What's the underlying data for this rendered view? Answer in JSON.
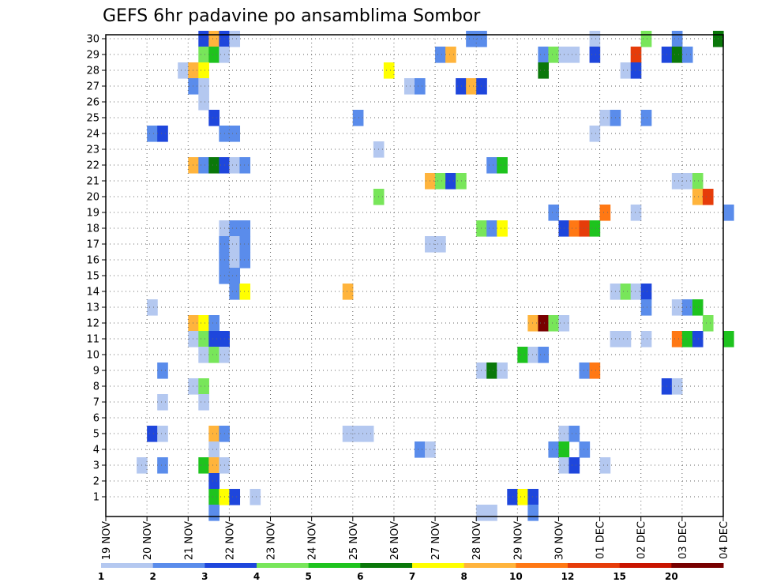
{
  "chart_data": {
    "type": "heatmap",
    "title": "GEFS 6hr padavine po ansamblima Sombor",
    "xlabel": "",
    "ylabel": "",
    "x_ticks": [
      "19 NOV",
      "20 NOV",
      "21 NOV",
      "22 NOV",
      "23 NOV",
      "24 NOV",
      "25 NOV",
      "26 NOV",
      "27 NOV",
      "28 NOV",
      "29 NOV",
      "30 NOV",
      "01 DEC",
      "02 DEC",
      "03 DEC",
      "04 DEC"
    ],
    "y_ticks": [
      "1",
      "2",
      "3",
      "4",
      "5",
      "6",
      "7",
      "8",
      "9",
      "10",
      "11",
      "12",
      "13",
      "14",
      "15",
      "16",
      "17",
      "18",
      "19",
      "20",
      "21",
      "22",
      "23",
      "24",
      "25",
      "26",
      "27",
      "28",
      "29",
      "30"
    ],
    "x_range_steps": [
      0,
      60
    ],
    "y_range_members": [
      0,
      30
    ],
    "grid": true,
    "legend": {
      "placement": "bottom",
      "labels": [
        "1",
        "2",
        "3",
        "4",
        "5",
        "6",
        "7",
        "8",
        "10",
        "12",
        "15",
        "20"
      ],
      "colors": [
        "#b4c8f0",
        "#5a8ceb",
        "#1e46dc",
        "#78e65a",
        "#1ec31e",
        "#0a780a",
        "#ffff00",
        "#ffb43c",
        "#ff7814",
        "#e63c0a",
        "#c81400",
        "#780000"
      ]
    },
    "cells": [
      {
        "m": 30,
        "t": 9,
        "c": 2
      },
      {
        "m": 30,
        "t": 10,
        "c": 7
      },
      {
        "m": 30,
        "t": 11,
        "c": 2
      },
      {
        "m": 30,
        "t": 12,
        "c": 0
      },
      {
        "m": 30,
        "t": 35,
        "c": 1
      },
      {
        "m": 30,
        "t": 36,
        "c": 1
      },
      {
        "m": 30,
        "t": 47,
        "c": 0
      },
      {
        "m": 30,
        "t": 52,
        "c": 3
      },
      {
        "m": 30,
        "t": 55,
        "c": 1
      },
      {
        "m": 30,
        "t": 59,
        "c": 5
      },
      {
        "m": 29,
        "t": 9,
        "c": 3
      },
      {
        "m": 29,
        "t": 10,
        "c": 4
      },
      {
        "m": 29,
        "t": 11,
        "c": 0
      },
      {
        "m": 29,
        "t": 32,
        "c": 1
      },
      {
        "m": 29,
        "t": 33,
        "c": 7
      },
      {
        "m": 29,
        "t": 42,
        "c": 1
      },
      {
        "m": 29,
        "t": 43,
        "c": 3
      },
      {
        "m": 29,
        "t": 44,
        "c": 0
      },
      {
        "m": 29,
        "t": 45,
        "c": 0
      },
      {
        "m": 29,
        "t": 47,
        "c": 2
      },
      {
        "m": 29,
        "t": 51,
        "c": 9
      },
      {
        "m": 29,
        "t": 54,
        "c": 2
      },
      {
        "m": 29,
        "t": 55,
        "c": 5
      },
      {
        "m": 29,
        "t": 56,
        "c": 1
      },
      {
        "m": 28,
        "t": 7,
        "c": 0
      },
      {
        "m": 28,
        "t": 8,
        "c": 7
      },
      {
        "m": 28,
        "t": 9,
        "c": 6
      },
      {
        "m": 28,
        "t": 27,
        "c": 6
      },
      {
        "m": 28,
        "t": 42,
        "c": 5
      },
      {
        "m": 28,
        "t": 50,
        "c": 0
      },
      {
        "m": 28,
        "t": 51,
        "c": 2
      },
      {
        "m": 27,
        "t": 8,
        "c": 1
      },
      {
        "m": 27,
        "t": 9,
        "c": 0
      },
      {
        "m": 27,
        "t": 29,
        "c": 0
      },
      {
        "m": 27,
        "t": 30,
        "c": 1
      },
      {
        "m": 27,
        "t": 34,
        "c": 2
      },
      {
        "m": 27,
        "t": 35,
        "c": 7
      },
      {
        "m": 27,
        "t": 36,
        "c": 2
      },
      {
        "m": 26,
        "t": 9,
        "c": 0
      },
      {
        "m": 25,
        "t": 10,
        "c": 2
      },
      {
        "m": 25,
        "t": 24,
        "c": 1
      },
      {
        "m": 25,
        "t": 48,
        "c": 0
      },
      {
        "m": 25,
        "t": 49,
        "c": 1
      },
      {
        "m": 25,
        "t": 52,
        "c": 1
      },
      {
        "m": 24,
        "t": 4,
        "c": 1
      },
      {
        "m": 24,
        "t": 5,
        "c": 2
      },
      {
        "m": 24,
        "t": 11,
        "c": 1
      },
      {
        "m": 24,
        "t": 12,
        "c": 1
      },
      {
        "m": 24,
        "t": 47,
        "c": 0
      },
      {
        "m": 23,
        "t": 26,
        "c": 0
      },
      {
        "m": 22,
        "t": 8,
        "c": 7
      },
      {
        "m": 22,
        "t": 9,
        "c": 1
      },
      {
        "m": 22,
        "t": 10,
        "c": 5
      },
      {
        "m": 22,
        "t": 11,
        "c": 2
      },
      {
        "m": 22,
        "t": 12,
        "c": 0
      },
      {
        "m": 22,
        "t": 13,
        "c": 1
      },
      {
        "m": 22,
        "t": 37,
        "c": 1
      },
      {
        "m": 22,
        "t": 38,
        "c": 4
      },
      {
        "m": 21,
        "t": 31,
        "c": 7
      },
      {
        "m": 21,
        "t": 32,
        "c": 3
      },
      {
        "m": 21,
        "t": 33,
        "c": 2
      },
      {
        "m": 21,
        "t": 34,
        "c": 3
      },
      {
        "m": 21,
        "t": 55,
        "c": 0
      },
      {
        "m": 21,
        "t": 56,
        "c": 0
      },
      {
        "m": 21,
        "t": 57,
        "c": 3
      },
      {
        "m": 20,
        "t": 26,
        "c": 3
      },
      {
        "m": 20,
        "t": 57,
        "c": 7
      },
      {
        "m": 20,
        "t": 58,
        "c": 9
      },
      {
        "m": 19,
        "t": 43,
        "c": 1
      },
      {
        "m": 19,
        "t": 48,
        "c": 8
      },
      {
        "m": 19,
        "t": 51,
        "c": 0
      },
      {
        "m": 19,
        "t": 60,
        "c": 1
      },
      {
        "m": 18,
        "t": 11,
        "c": 0
      },
      {
        "m": 18,
        "t": 12,
        "c": 1
      },
      {
        "m": 18,
        "t": 13,
        "c": 1
      },
      {
        "m": 18,
        "t": 36,
        "c": 3
      },
      {
        "m": 18,
        "t": 37,
        "c": 1
      },
      {
        "m": 18,
        "t": 38,
        "c": 6
      },
      {
        "m": 18,
        "t": 44,
        "c": 2
      },
      {
        "m": 18,
        "t": 45,
        "c": 8
      },
      {
        "m": 18,
        "t": 46,
        "c": 9
      },
      {
        "m": 18,
        "t": 47,
        "c": 4
      },
      {
        "m": 17,
        "t": 11,
        "c": 1
      },
      {
        "m": 17,
        "t": 12,
        "c": 0
      },
      {
        "m": 17,
        "t": 13,
        "c": 1
      },
      {
        "m": 17,
        "t": 31,
        "c": 0
      },
      {
        "m": 17,
        "t": 32,
        "c": 0
      },
      {
        "m": 16,
        "t": 11,
        "c": 1
      },
      {
        "m": 16,
        "t": 12,
        "c": 0
      },
      {
        "m": 16,
        "t": 13,
        "c": 1
      },
      {
        "m": 15,
        "t": 11,
        "c": 1
      },
      {
        "m": 15,
        "t": 12,
        "c": 1
      },
      {
        "m": 14,
        "t": 12,
        "c": 1
      },
      {
        "m": 14,
        "t": 13,
        "c": 6
      },
      {
        "m": 14,
        "t": 23,
        "c": 7
      },
      {
        "m": 14,
        "t": 49,
        "c": 0
      },
      {
        "m": 14,
        "t": 50,
        "c": 3
      },
      {
        "m": 14,
        "t": 51,
        "c": 0
      },
      {
        "m": 14,
        "t": 52,
        "c": 2
      },
      {
        "m": 13,
        "t": 4,
        "c": 0
      },
      {
        "m": 13,
        "t": 52,
        "c": 1
      },
      {
        "m": 13,
        "t": 55,
        "c": 0
      },
      {
        "m": 13,
        "t": 56,
        "c": 1
      },
      {
        "m": 13,
        "t": 57,
        "c": 4
      },
      {
        "m": 12,
        "t": 8,
        "c": 7
      },
      {
        "m": 12,
        "t": 9,
        "c": 6
      },
      {
        "m": 12,
        "t": 10,
        "c": 1
      },
      {
        "m": 12,
        "t": 41,
        "c": 7
      },
      {
        "m": 12,
        "t": 42,
        "c": 11
      },
      {
        "m": 12,
        "t": 43,
        "c": 3
      },
      {
        "m": 12,
        "t": 44,
        "c": 0
      },
      {
        "m": 12,
        "t": 58,
        "c": 3
      },
      {
        "m": 11,
        "t": 8,
        "c": 0
      },
      {
        "m": 11,
        "t": 9,
        "c": 3
      },
      {
        "m": 11,
        "t": 10,
        "c": 2
      },
      {
        "m": 11,
        "t": 11,
        "c": 2
      },
      {
        "m": 11,
        "t": 49,
        "c": 0
      },
      {
        "m": 11,
        "t": 50,
        "c": 0
      },
      {
        "m": 11,
        "t": 52,
        "c": 0
      },
      {
        "m": 11,
        "t": 55,
        "c": 8
      },
      {
        "m": 11,
        "t": 56,
        "c": 4
      },
      {
        "m": 11,
        "t": 57,
        "c": 2
      },
      {
        "m": 11,
        "t": 60,
        "c": 4
      },
      {
        "m": 10,
        "t": 9,
        "c": 0
      },
      {
        "m": 10,
        "t": 10,
        "c": 3
      },
      {
        "m": 10,
        "t": 11,
        "c": 0
      },
      {
        "m": 10,
        "t": 40,
        "c": 4
      },
      {
        "m": 10,
        "t": 41,
        "c": 0
      },
      {
        "m": 10,
        "t": 42,
        "c": 1
      },
      {
        "m": 9,
        "t": 5,
        "c": 1
      },
      {
        "m": 9,
        "t": 36,
        "c": 0
      },
      {
        "m": 9,
        "t": 37,
        "c": 5
      },
      {
        "m": 9,
        "t": 38,
        "c": 0
      },
      {
        "m": 9,
        "t": 46,
        "c": 1
      },
      {
        "m": 9,
        "t": 47,
        "c": 8
      },
      {
        "m": 8,
        "t": 8,
        "c": 0
      },
      {
        "m": 8,
        "t": 9,
        "c": 3
      },
      {
        "m": 8,
        "t": 54,
        "c": 2
      },
      {
        "m": 8,
        "t": 55,
        "c": 0
      },
      {
        "m": 7,
        "t": 5,
        "c": 0
      },
      {
        "m": 7,
        "t": 9,
        "c": 0
      },
      {
        "m": 5,
        "t": 4,
        "c": 2
      },
      {
        "m": 5,
        "t": 5,
        "c": 0
      },
      {
        "m": 5,
        "t": 10,
        "c": 7
      },
      {
        "m": 5,
        "t": 11,
        "c": 1
      },
      {
        "m": 5,
        "t": 23,
        "c": 0
      },
      {
        "m": 5,
        "t": 24,
        "c": 0
      },
      {
        "m": 5,
        "t": 25,
        "c": 0
      },
      {
        "m": 5,
        "t": 44,
        "c": 0
      },
      {
        "m": 5,
        "t": 45,
        "c": 1
      },
      {
        "m": 4,
        "t": 10,
        "c": 0
      },
      {
        "m": 4,
        "t": 30,
        "c": 1
      },
      {
        "m": 4,
        "t": 31,
        "c": 0
      },
      {
        "m": 4,
        "t": 43,
        "c": 1
      },
      {
        "m": 4,
        "t": 44,
        "c": 4
      },
      {
        "m": 4,
        "t": 46,
        "c": 1
      },
      {
        "m": 3,
        "t": 3,
        "c": 0
      },
      {
        "m": 3,
        "t": 5,
        "c": 1
      },
      {
        "m": 3,
        "t": 9,
        "c": 4
      },
      {
        "m": 3,
        "t": 10,
        "c": 7
      },
      {
        "m": 3,
        "t": 11,
        "c": 0
      },
      {
        "m": 3,
        "t": 44,
        "c": 0
      },
      {
        "m": 3,
        "t": 45,
        "c": 2
      },
      {
        "m": 3,
        "t": 48,
        "c": 0
      },
      {
        "m": 2,
        "t": 10,
        "c": 2
      },
      {
        "m": 1,
        "t": 10,
        "c": 4
      },
      {
        "m": 1,
        "t": 11,
        "c": 6
      },
      {
        "m": 1,
        "t": 12,
        "c": 2
      },
      {
        "m": 1,
        "t": 14,
        "c": 0
      },
      {
        "m": 1,
        "t": 39,
        "c": 2
      },
      {
        "m": 1,
        "t": 40,
        "c": 6
      },
      {
        "m": 1,
        "t": 41,
        "c": 2
      },
      {
        "m": 0,
        "t": 10,
        "c": 1
      },
      {
        "m": 0,
        "t": 36,
        "c": 0
      },
      {
        "m": 0,
        "t": 37,
        "c": 0
      },
      {
        "m": 0,
        "t": 41,
        "c": 1
      }
    ]
  }
}
